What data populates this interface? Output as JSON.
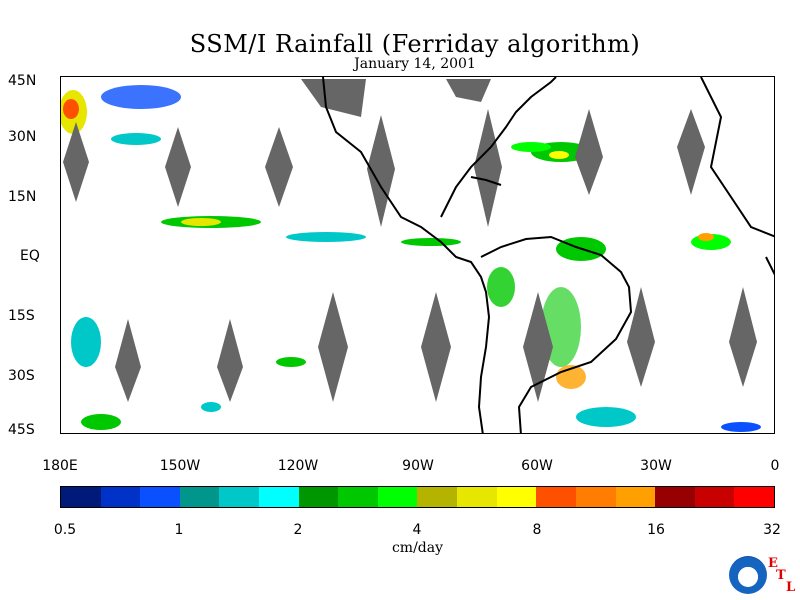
{
  "title": "SSM/I Rainfall (Ferriday algorithm)",
  "subtitle": "January 14, 2001",
  "lat_labels": [
    "45N",
    "30N",
    "15N",
    "EQ",
    "15S",
    "30S",
    "45S"
  ],
  "lon_labels": [
    "180E",
    "150W",
    "120W",
    "90W",
    "60W",
    "30W",
    "0"
  ],
  "colorbar": {
    "label": "cm/day",
    "tick_labels": [
      "0.5",
      "1",
      "2",
      "4",
      "8",
      "16",
      "32"
    ],
    "colors": [
      "#001a7a",
      "#0032c8",
      "#0a50ff",
      "#00968c",
      "#00c8c8",
      "#00ffff",
      "#009600",
      "#00c800",
      "#00ff00",
      "#b4b400",
      "#e6e600",
      "#ffff00",
      "#ff5000",
      "#ff7d00",
      "#ffa000",
      "#960000",
      "#c80000",
      "#ff0000"
    ]
  },
  "logo": {
    "noaa": "NOAA",
    "etl": [
      "E",
      "T",
      "L"
    ]
  }
}
